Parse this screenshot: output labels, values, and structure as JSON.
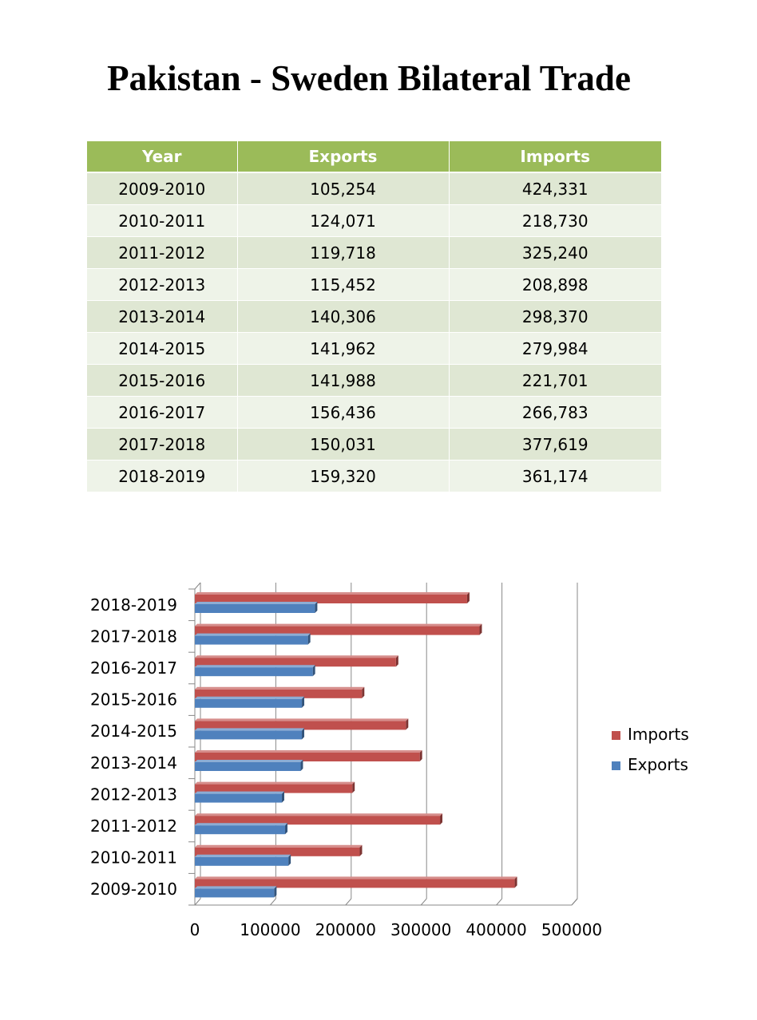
{
  "title": "Pakistan - Sweden Bilateral Trade",
  "table": {
    "headers": [
      "Year",
      "Exports",
      "Imports"
    ],
    "rows": [
      [
        "2009-2010",
        "105,254",
        "424,331"
      ],
      [
        "2010-2011",
        "124,071",
        "218,730"
      ],
      [
        "2011-2012",
        "119,718",
        "325,240"
      ],
      [
        "2012-2013",
        "115,452",
        "208,898"
      ],
      [
        "2013-2014",
        "140,306",
        "298,370"
      ],
      [
        "2014-2015",
        "141,962",
        "279,984"
      ],
      [
        "2015-2016",
        "141,988",
        "221,701"
      ],
      [
        "2016-2017",
        "156,436",
        "266,783"
      ],
      [
        "2017-2018",
        "150,031",
        "377,619"
      ],
      [
        "2018-2019",
        "159,320",
        "361,174"
      ]
    ]
  },
  "chart_data": {
    "type": "bar",
    "orientation": "horizontal",
    "style": "3d-clustered-bar",
    "categories": [
      "2009-2010",
      "2010-2011",
      "2011-2012",
      "2012-2013",
      "2013-2014",
      "2014-2015",
      "2015-2016",
      "2016-2017",
      "2017-2018",
      "2018-2019"
    ],
    "series": [
      {
        "name": "Exports",
        "color": "#4f81bd",
        "values": [
          105254,
          124071,
          119718,
          115452,
          140306,
          141962,
          141988,
          156436,
          150031,
          159320
        ]
      },
      {
        "name": "Imports",
        "color": "#c0504d",
        "values": [
          424331,
          218730,
          325240,
          208898,
          298370,
          279984,
          221701,
          266783,
          377619,
          361174
        ]
      }
    ],
    "xlim": [
      0,
      500000
    ],
    "xticks": [
      0,
      100000,
      200000,
      300000,
      400000,
      500000
    ],
    "xtick_labels": [
      "0",
      "100000",
      "200000",
      "300000",
      "400000",
      "500000"
    ],
    "grid": "vertical",
    "legend": {
      "position": "right",
      "order": [
        "Imports",
        "Exports"
      ]
    }
  }
}
